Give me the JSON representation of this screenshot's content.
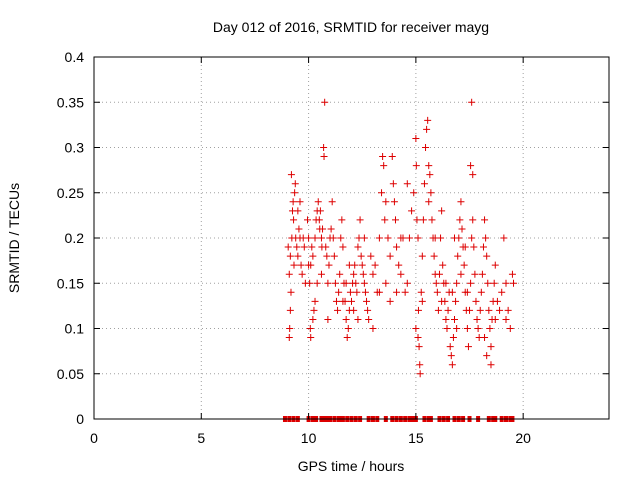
{
  "chart_data": {
    "type": "scatter",
    "title": "Day 012 of 2016, SRMTID for receiver mayg",
    "xlabel": "GPS time / hours",
    "ylabel": "SRMTID / TECUs",
    "xlim": [
      0,
      24
    ],
    "ylim": [
      0,
      0.4
    ],
    "grid": true,
    "marker": "+",
    "color": "#dd0000",
    "x_ticks": [
      {
        "value": 0,
        "label": "0"
      },
      {
        "value": 5,
        "label": "5"
      },
      {
        "value": 10,
        "label": "10"
      },
      {
        "value": 15,
        "label": "15"
      },
      {
        "value": 20,
        "label": "20"
      }
    ],
    "y_ticks": [
      {
        "value": 0,
        "label": "0"
      },
      {
        "value": 0.05,
        "label": "0.05"
      },
      {
        "value": 0.1,
        "label": "0.1"
      },
      {
        "value": 0.15,
        "label": "0.15"
      },
      {
        "value": 0.2,
        "label": "0.2"
      },
      {
        "value": 0.25,
        "label": "0.25"
      },
      {
        "value": 0.3,
        "label": "0.3"
      },
      {
        "value": 0.35,
        "label": "0.35"
      },
      {
        "value": 0.4,
        "label": "0.4"
      }
    ],
    "series": [
      {
        "name": "SRMTID",
        "points": [
          [
            9.05,
            0.19
          ],
          [
            9.1,
            0.16
          ],
          [
            9.12,
            0.1
          ],
          [
            9.15,
            0.18
          ],
          [
            9.18,
            0.14
          ],
          [
            9.2,
            0.27
          ],
          [
            9.22,
            0.2
          ],
          [
            9.25,
            0.23
          ],
          [
            9.28,
            0.24
          ],
          [
            9.3,
            0.22
          ],
          [
            9.32,
            0.17
          ],
          [
            9.35,
            0.25
          ],
          [
            9.38,
            0.26
          ],
          [
            9.4,
            0.2
          ],
          [
            9.45,
            0.19
          ],
          [
            9.5,
            0.18
          ],
          [
            9.55,
            0.21
          ],
          [
            9.6,
            0.2
          ],
          [
            9.65,
            0.17
          ],
          [
            9.7,
            0.16
          ],
          [
            9.75,
            0.2
          ],
          [
            9.8,
            0.19
          ],
          [
            9.85,
            0.15
          ],
          [
            9.1,
            0.09
          ],
          [
            9.15,
            0.12
          ],
          [
            9.6,
            0.24
          ],
          [
            9.5,
            0.23
          ],
          [
            9.95,
            0.22
          ],
          [
            10.0,
            0.2
          ],
          [
            10.05,
            0.15
          ],
          [
            10.08,
            0.1
          ],
          [
            10.1,
            0.17
          ],
          [
            10.15,
            0.19
          ],
          [
            10.2,
            0.18
          ],
          [
            10.25,
            0.12
          ],
          [
            10.3,
            0.2
          ],
          [
            10.35,
            0.22
          ],
          [
            10.4,
            0.23
          ],
          [
            10.45,
            0.24
          ],
          [
            10.5,
            0.22
          ],
          [
            10.52,
            0.21
          ],
          [
            10.55,
            0.23
          ],
          [
            10.6,
            0.2
          ],
          [
            10.62,
            0.19
          ],
          [
            10.65,
            0.21
          ],
          [
            10.7,
            0.3
          ],
          [
            10.72,
            0.29
          ],
          [
            10.75,
            0.35
          ],
          [
            10.8,
            0.19
          ],
          [
            10.85,
            0.18
          ],
          [
            10.9,
            0.15
          ],
          [
            10.95,
            0.17
          ],
          [
            11.0,
            0.2
          ],
          [
            11.05,
            0.21
          ],
          [
            11.1,
            0.24
          ],
          [
            11.15,
            0.2
          ],
          [
            11.2,
            0.18
          ],
          [
            11.25,
            0.15
          ],
          [
            10.1,
            0.09
          ],
          [
            10.2,
            0.11
          ],
          [
            10.4,
            0.15
          ],
          [
            10.3,
            0.13
          ],
          [
            10.6,
            0.16
          ],
          [
            10.9,
            0.11
          ],
          [
            10.0,
            0.17
          ],
          [
            11.3,
            0.13
          ],
          [
            11.35,
            0.12
          ],
          [
            11.4,
            0.14
          ],
          [
            11.45,
            0.16
          ],
          [
            11.5,
            0.2
          ],
          [
            11.55,
            0.22
          ],
          [
            11.6,
            0.19
          ],
          [
            11.65,
            0.15
          ],
          [
            11.7,
            0.13
          ],
          [
            11.75,
            0.11
          ],
          [
            11.8,
            0.09
          ],
          [
            11.85,
            0.1
          ],
          [
            11.9,
            0.12
          ],
          [
            11.95,
            0.14
          ],
          [
            12.0,
            0.13
          ],
          [
            12.05,
            0.15
          ],
          [
            12.1,
            0.16
          ],
          [
            12.15,
            0.17
          ],
          [
            12.2,
            0.15
          ],
          [
            12.25,
            0.14
          ],
          [
            12.3,
            0.19
          ],
          [
            12.35,
            0.2
          ],
          [
            12.4,
            0.22
          ],
          [
            12.45,
            0.18
          ],
          [
            12.5,
            0.17
          ],
          [
            12.55,
            0.16
          ],
          [
            12.6,
            0.15
          ],
          [
            12.65,
            0.14
          ],
          [
            12.7,
            0.13
          ],
          [
            12.75,
            0.12
          ],
          [
            12.8,
            0.11
          ],
          [
            11.6,
            0.13
          ],
          [
            11.9,
            0.17
          ],
          [
            12.1,
            0.12
          ],
          [
            12.3,
            0.11
          ],
          [
            11.75,
            0.15
          ],
          [
            12.6,
            0.2
          ],
          [
            12.9,
            0.18
          ],
          [
            13.0,
            0.16
          ],
          [
            13.1,
            0.17
          ],
          [
            13.2,
            0.14
          ],
          [
            13.3,
            0.2
          ],
          [
            13.4,
            0.25
          ],
          [
            13.45,
            0.29
          ],
          [
            13.5,
            0.28
          ],
          [
            13.55,
            0.22
          ],
          [
            13.6,
            0.24
          ],
          [
            13.7,
            0.2
          ],
          [
            13.8,
            0.18
          ],
          [
            13.9,
            0.29
          ],
          [
            13.95,
            0.26
          ],
          [
            14.0,
            0.24
          ],
          [
            14.05,
            0.22
          ],
          [
            14.1,
            0.19
          ],
          [
            14.2,
            0.17
          ],
          [
            14.3,
            0.16
          ],
          [
            14.4,
            0.2
          ],
          [
            14.5,
            0.14
          ],
          [
            14.6,
            0.15
          ],
          [
            14.7,
            0.2
          ],
          [
            14.8,
            0.23
          ],
          [
            14.9,
            0.25
          ],
          [
            13.0,
            0.1
          ],
          [
            13.3,
            0.14
          ],
          [
            13.6,
            0.15
          ],
          [
            13.8,
            0.13
          ],
          [
            14.1,
            0.14
          ],
          [
            14.3,
            0.2
          ],
          [
            14.6,
            0.26
          ],
          [
            15.0,
            0.31
          ],
          [
            15.02,
            0.28
          ],
          [
            15.05,
            0.22
          ],
          [
            15.1,
            0.2
          ],
          [
            15.12,
            0.12
          ],
          [
            15.15,
            0.08
          ],
          [
            15.18,
            0.06
          ],
          [
            15.2,
            0.05
          ],
          [
            15.25,
            0.14
          ],
          [
            15.3,
            0.18
          ],
          [
            15.35,
            0.22
          ],
          [
            15.4,
            0.26
          ],
          [
            15.45,
            0.3
          ],
          [
            15.5,
            0.32
          ],
          [
            15.55,
            0.33
          ],
          [
            15.6,
            0.28
          ],
          [
            15.65,
            0.27
          ],
          [
            15.7,
            0.25
          ],
          [
            15.75,
            0.22
          ],
          [
            15.8,
            0.2
          ],
          [
            15.85,
            0.18
          ],
          [
            15.9,
            0.16
          ],
          [
            15.95,
            0.15
          ],
          [
            16.0,
            0.14
          ],
          [
            16.05,
            0.12
          ],
          [
            16.1,
            0.16
          ],
          [
            16.15,
            0.2
          ],
          [
            16.2,
            0.23
          ],
          [
            16.25,
            0.17
          ],
          [
            16.3,
            0.15
          ],
          [
            16.35,
            0.13
          ],
          [
            16.4,
            0.11
          ],
          [
            16.45,
            0.1
          ],
          [
            16.5,
            0.12
          ],
          [
            16.55,
            0.14
          ],
          [
            15.3,
            0.13
          ],
          [
            15.6,
            0.24
          ],
          [
            15.9,
            0.2
          ],
          [
            16.2,
            0.13
          ],
          [
            15.1,
            0.09
          ],
          [
            15.0,
            0.1
          ],
          [
            16.4,
            0.15
          ],
          [
            16.6,
            0.08
          ],
          [
            16.65,
            0.07
          ],
          [
            16.7,
            0.06
          ],
          [
            16.75,
            0.09
          ],
          [
            16.8,
            0.11
          ],
          [
            16.85,
            0.13
          ],
          [
            16.9,
            0.15
          ],
          [
            16.95,
            0.18
          ],
          [
            17.0,
            0.2
          ],
          [
            17.05,
            0.22
          ],
          [
            17.1,
            0.24
          ],
          [
            17.15,
            0.21
          ],
          [
            17.2,
            0.19
          ],
          [
            17.25,
            0.17
          ],
          [
            17.3,
            0.14
          ],
          [
            17.35,
            0.12
          ],
          [
            17.4,
            0.1
          ],
          [
            17.45,
            0.08
          ],
          [
            17.5,
            0.12
          ],
          [
            17.55,
            0.15
          ],
          [
            17.6,
            0.2
          ],
          [
            17.65,
            0.22
          ],
          [
            17.7,
            0.19
          ],
          [
            17.75,
            0.16
          ],
          [
            17.8,
            0.13
          ],
          [
            17.85,
            0.11
          ],
          [
            17.9,
            0.1
          ],
          [
            17.95,
            0.09
          ],
          [
            18.0,
            0.12
          ],
          [
            17.6,
            0.35
          ],
          [
            17.55,
            0.28
          ],
          [
            17.65,
            0.27
          ],
          [
            16.7,
            0.14
          ],
          [
            16.9,
            0.1
          ],
          [
            17.1,
            0.16
          ],
          [
            17.3,
            0.19
          ],
          [
            16.8,
            0.2
          ],
          [
            17.4,
            0.14
          ],
          [
            18.05,
            0.14
          ],
          [
            18.1,
            0.16
          ],
          [
            18.15,
            0.19
          ],
          [
            18.2,
            0.22
          ],
          [
            18.25,
            0.2
          ],
          [
            18.3,
            0.18
          ],
          [
            18.35,
            0.15
          ],
          [
            18.4,
            0.12
          ],
          [
            18.45,
            0.1
          ],
          [
            18.5,
            0.08
          ],
          [
            18.55,
            0.11
          ],
          [
            18.6,
            0.13
          ],
          [
            18.65,
            0.15
          ],
          [
            18.7,
            0.17
          ],
          [
            18.8,
            0.13
          ],
          [
            18.9,
            0.12
          ],
          [
            19.0,
            0.14
          ],
          [
            19.1,
            0.2
          ],
          [
            19.2,
            0.15
          ],
          [
            19.3,
            0.12
          ],
          [
            19.4,
            0.1
          ],
          [
            19.5,
            0.16
          ],
          [
            19.55,
            0.15
          ],
          [
            18.3,
            0.07
          ],
          [
            18.5,
            0.06
          ],
          [
            18.2,
            0.09
          ],
          [
            18.7,
            0.11
          ],
          [
            19.2,
            0.11
          ]
        ]
      }
    ],
    "zero_points_x": [
      8.9,
      9.1,
      9.3,
      9.5,
      10.0,
      10.2,
      10.35,
      10.6,
      10.75,
      10.85,
      11.0,
      11.2,
      11.4,
      11.45,
      11.6,
      11.8,
      12.0,
      12.2,
      12.4,
      12.8,
      13.0,
      13.2,
      13.6,
      13.9,
      14.1,
      14.3,
      14.5,
      14.7,
      14.85,
      15.0,
      15.4,
      15.6,
      15.7,
      16.1,
      16.3,
      16.5,
      16.8,
      17.0,
      17.2,
      17.5,
      17.9,
      18.4,
      18.6,
      18.7,
      19.0,
      19.2,
      19.4,
      19.5
    ]
  }
}
